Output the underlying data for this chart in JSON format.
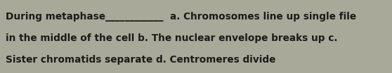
{
  "background_color": "#a9a99a",
  "text_color": "#1a1a1a",
  "line1": "During metaphase____________  a. Chromosomes line up single file",
  "line2": "in the middle of the cell b. The nuclear envelope breaks up c.",
  "line3": "Sister chromatids separate d. Centromeres divide",
  "font_size": 9.8,
  "font_family": "DejaVu Sans",
  "fig_width": 5.58,
  "fig_height": 1.05,
  "dpi": 100
}
